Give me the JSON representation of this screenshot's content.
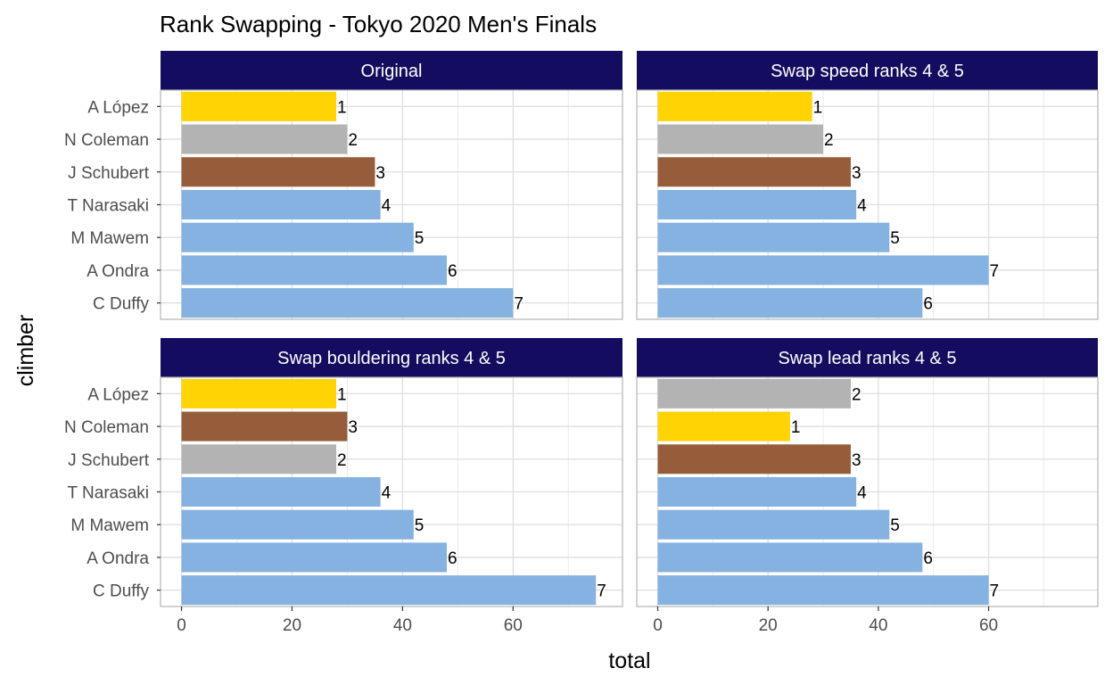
{
  "chart_data": {
    "type": "bar",
    "orientation": "horizontal",
    "title": "Rank Swapping - Tokyo 2020 Men's Finals",
    "xlabel": "total",
    "ylabel": "climber",
    "xlim": [
      -3.8,
      79.8
    ],
    "x_ticks": [
      0,
      20,
      40,
      60
    ],
    "categories": [
      "A López",
      "N Coleman",
      "J Schubert",
      "T Narasaki",
      "M Mawem",
      "A Ondra",
      "C Duffy"
    ],
    "grid": true,
    "rank_colors": {
      "1": "#FFD304",
      "2": "#B3B3B3",
      "3": "#955D39",
      "other": "#85B2E0"
    },
    "strip_color": "#140D5F",
    "panels": [
      {
        "name": "Original",
        "values": [
          28,
          30,
          35,
          36,
          42,
          48,
          60
        ],
        "ranks": [
          1,
          2,
          3,
          4,
          5,
          6,
          7
        ]
      },
      {
        "name": "Swap speed ranks 4 & 5",
        "values": [
          28,
          30,
          35,
          36,
          42,
          60,
          48
        ],
        "ranks": [
          1,
          2,
          3,
          4,
          5,
          7,
          6
        ]
      },
      {
        "name": "Swap bouldering ranks 4 & 5",
        "values": [
          28,
          30,
          28,
          36,
          42,
          48,
          75
        ],
        "ranks": [
          1,
          3,
          2,
          4,
          5,
          6,
          7
        ]
      },
      {
        "name": "Swap lead ranks 4 & 5",
        "values": [
          35,
          24,
          35,
          36,
          42,
          48,
          60
        ],
        "ranks": [
          2,
          1,
          3,
          4,
          5,
          6,
          7
        ]
      }
    ]
  }
}
